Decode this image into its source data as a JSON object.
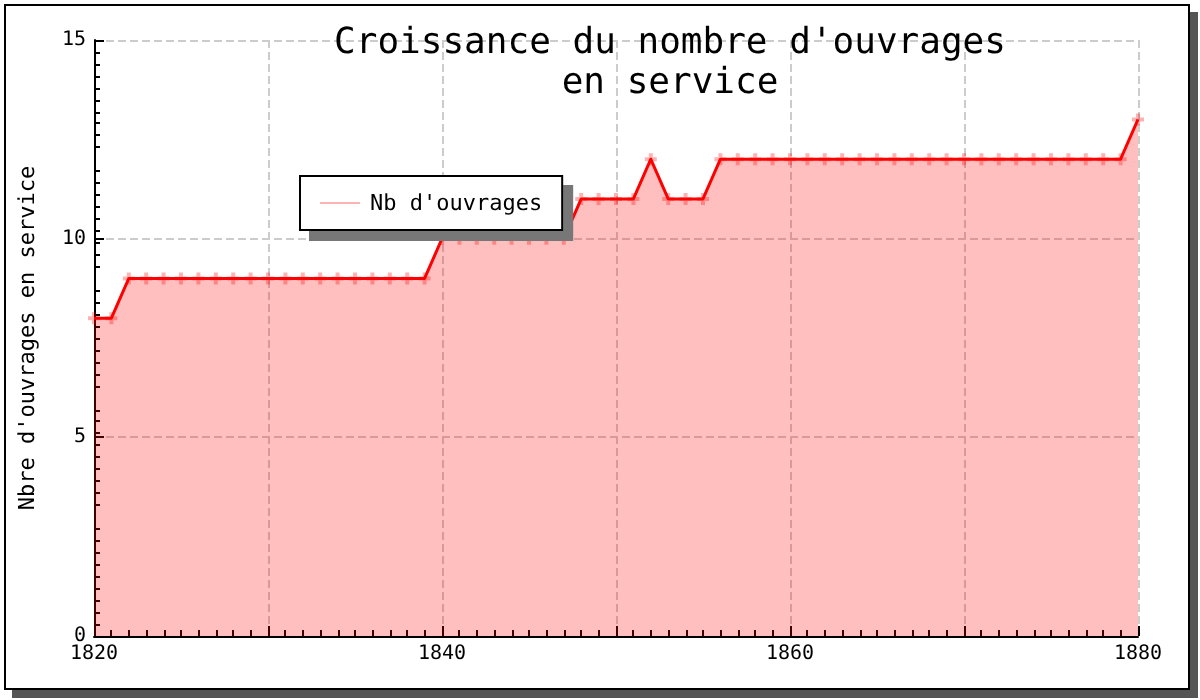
{
  "chart_data": {
    "type": "area",
    "title": "Croissance du nombre d'ouvrages\nen service",
    "ylabel": "Nbre d'ouvrages en service",
    "x": [
      1820,
      1821,
      1822,
      1823,
      1824,
      1825,
      1826,
      1827,
      1828,
      1829,
      1830,
      1831,
      1832,
      1833,
      1834,
      1835,
      1836,
      1837,
      1838,
      1839,
      1840,
      1841,
      1842,
      1843,
      1844,
      1845,
      1846,
      1847,
      1848,
      1849,
      1850,
      1851,
      1852,
      1853,
      1854,
      1855,
      1856,
      1857,
      1858,
      1859,
      1860,
      1861,
      1862,
      1863,
      1864,
      1865,
      1866,
      1867,
      1868,
      1869,
      1870,
      1871,
      1872,
      1873,
      1874,
      1875,
      1876,
      1877,
      1878,
      1879,
      1880
    ],
    "series": [
      {
        "name": "Nb d'ouvrages",
        "color": "#ff0000",
        "values": [
          8,
          8,
          9,
          9,
          9,
          9,
          9,
          9,
          9,
          9,
          9,
          9,
          9,
          9,
          9,
          9,
          9,
          9,
          9,
          9,
          10,
          10,
          10,
          10,
          10,
          10,
          10,
          10,
          11,
          11,
          11,
          11,
          12,
          11,
          11,
          11,
          12,
          12,
          12,
          12,
          12,
          12,
          12,
          12,
          12,
          12,
          12,
          12,
          12,
          12,
          12,
          12,
          12,
          12,
          12,
          12,
          12,
          12,
          12,
          12,
          13
        ]
      }
    ],
    "xlim": [
      1820,
      1880
    ],
    "xticks": [
      1820,
      {
        "value": 1830,
        "label": null
      },
      1840,
      {
        "value": 1850,
        "label": null
      },
      1860,
      {
        "value": 1870,
        "label": null
      },
      1880
    ],
    "ylim": [
      0,
      15
    ],
    "yticks": [
      0,
      5,
      10,
      15
    ],
    "grid": true,
    "legend": "top left",
    "marker": "cross",
    "line_style": "solid"
  }
}
